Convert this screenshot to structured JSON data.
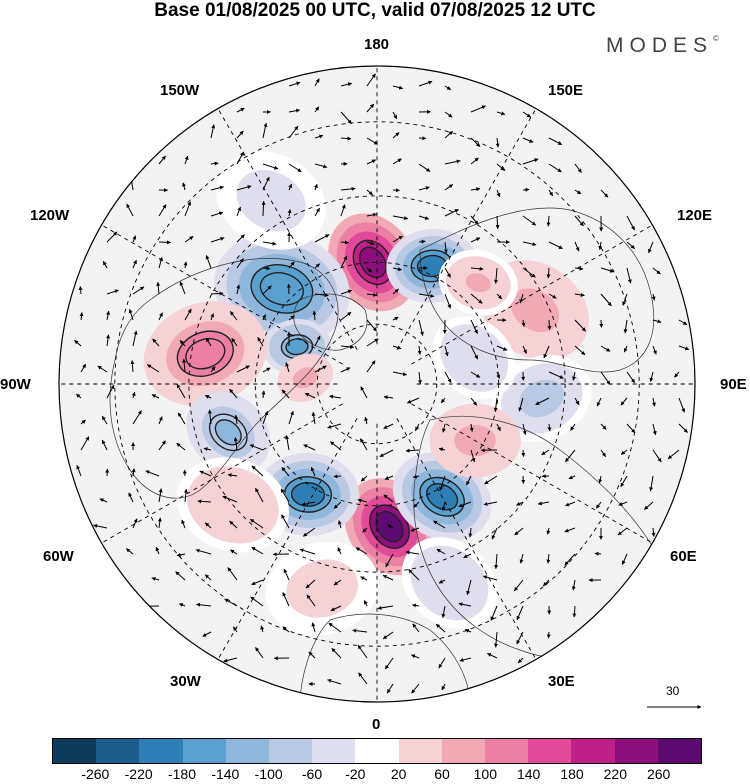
{
  "title": "Base 01/08/2025 00 UTC, valid 07/08/2025 12 UTC",
  "brand": "MODES",
  "brand_mark": "©",
  "longitude_labels": {
    "top": "180",
    "bottom": "0",
    "left": "90W",
    "right": "90E",
    "upper_left_1": "150W",
    "upper_left_2": "120W",
    "upper_right_1": "150E",
    "upper_right_2": "120E",
    "lower_left_1": "60W",
    "lower_left_2": "30W",
    "lower_right_1": "60E",
    "lower_right_2": "30E"
  },
  "reference_vector": {
    "value": "30"
  },
  "colorbar": {
    "colors": [
      "#0f3b5a",
      "#1f5e8c",
      "#2f7fb6",
      "#5aa0cf",
      "#8fb7dc",
      "#b9c9e4",
      "#dedeee",
      "#ffffff",
      "#f6d2d4",
      "#f1a9b4",
      "#ec7fa4",
      "#e14a99",
      "#c01f87",
      "#8c0f7c",
      "#5e0a73"
    ],
    "ticks": [
      "-260",
      "-220",
      "-180",
      "-140",
      "-100",
      "-60",
      "-20",
      "20",
      "60",
      "100",
      "140",
      "180",
      "220",
      "260"
    ]
  },
  "anomaly_centers": [
    {
      "lon": 178,
      "lat": 60,
      "value": 240,
      "r": 9
    },
    {
      "lon": 205,
      "lat": 58,
      "value": -200,
      "r": 8
    },
    {
      "lon": 135,
      "lat": 57,
      "value": -180,
      "r": 12
    },
    {
      "lon": 115,
      "lat": 68,
      "value": -150,
      "r": 6
    },
    {
      "lon": 100,
      "lat": 48,
      "value": 120,
      "r": 11
    },
    {
      "lon": 72,
      "lat": 52,
      "value": -110,
      "r": 8
    },
    {
      "lon": 355,
      "lat": 55,
      "value": 260,
      "r": 9
    },
    {
      "lon": 330,
      "lat": 58,
      "value": -200,
      "r": 9
    },
    {
      "lon": 32,
      "lat": 58,
      "value": -200,
      "r": 9
    },
    {
      "lon": 245,
      "lat": 48,
      "value": 80,
      "r": 10
    },
    {
      "lon": 275,
      "lat": 50,
      "value": -80,
      "r": 9
    },
    {
      "lon": 300,
      "lat": 62,
      "value": 90,
      "r": 8
    },
    {
      "lon": 255,
      "lat": 65,
      "value": -60,
      "r": 8
    },
    {
      "lon": 225,
      "lat": 55,
      "value": 70,
      "r": 7
    },
    {
      "lon": 95,
      "lat": 72,
      "value": 80,
      "r": 5
    },
    {
      "lon": 15,
      "lat": 40,
      "value": 40,
      "r": 10
    },
    {
      "lon": 340,
      "lat": 40,
      "value": -50,
      "r": 9
    },
    {
      "lon": 50,
      "lat": 45,
      "value": 50,
      "r": 10
    },
    {
      "lon": 150,
      "lat": 40,
      "value": -40,
      "r": 10
    }
  ]
}
